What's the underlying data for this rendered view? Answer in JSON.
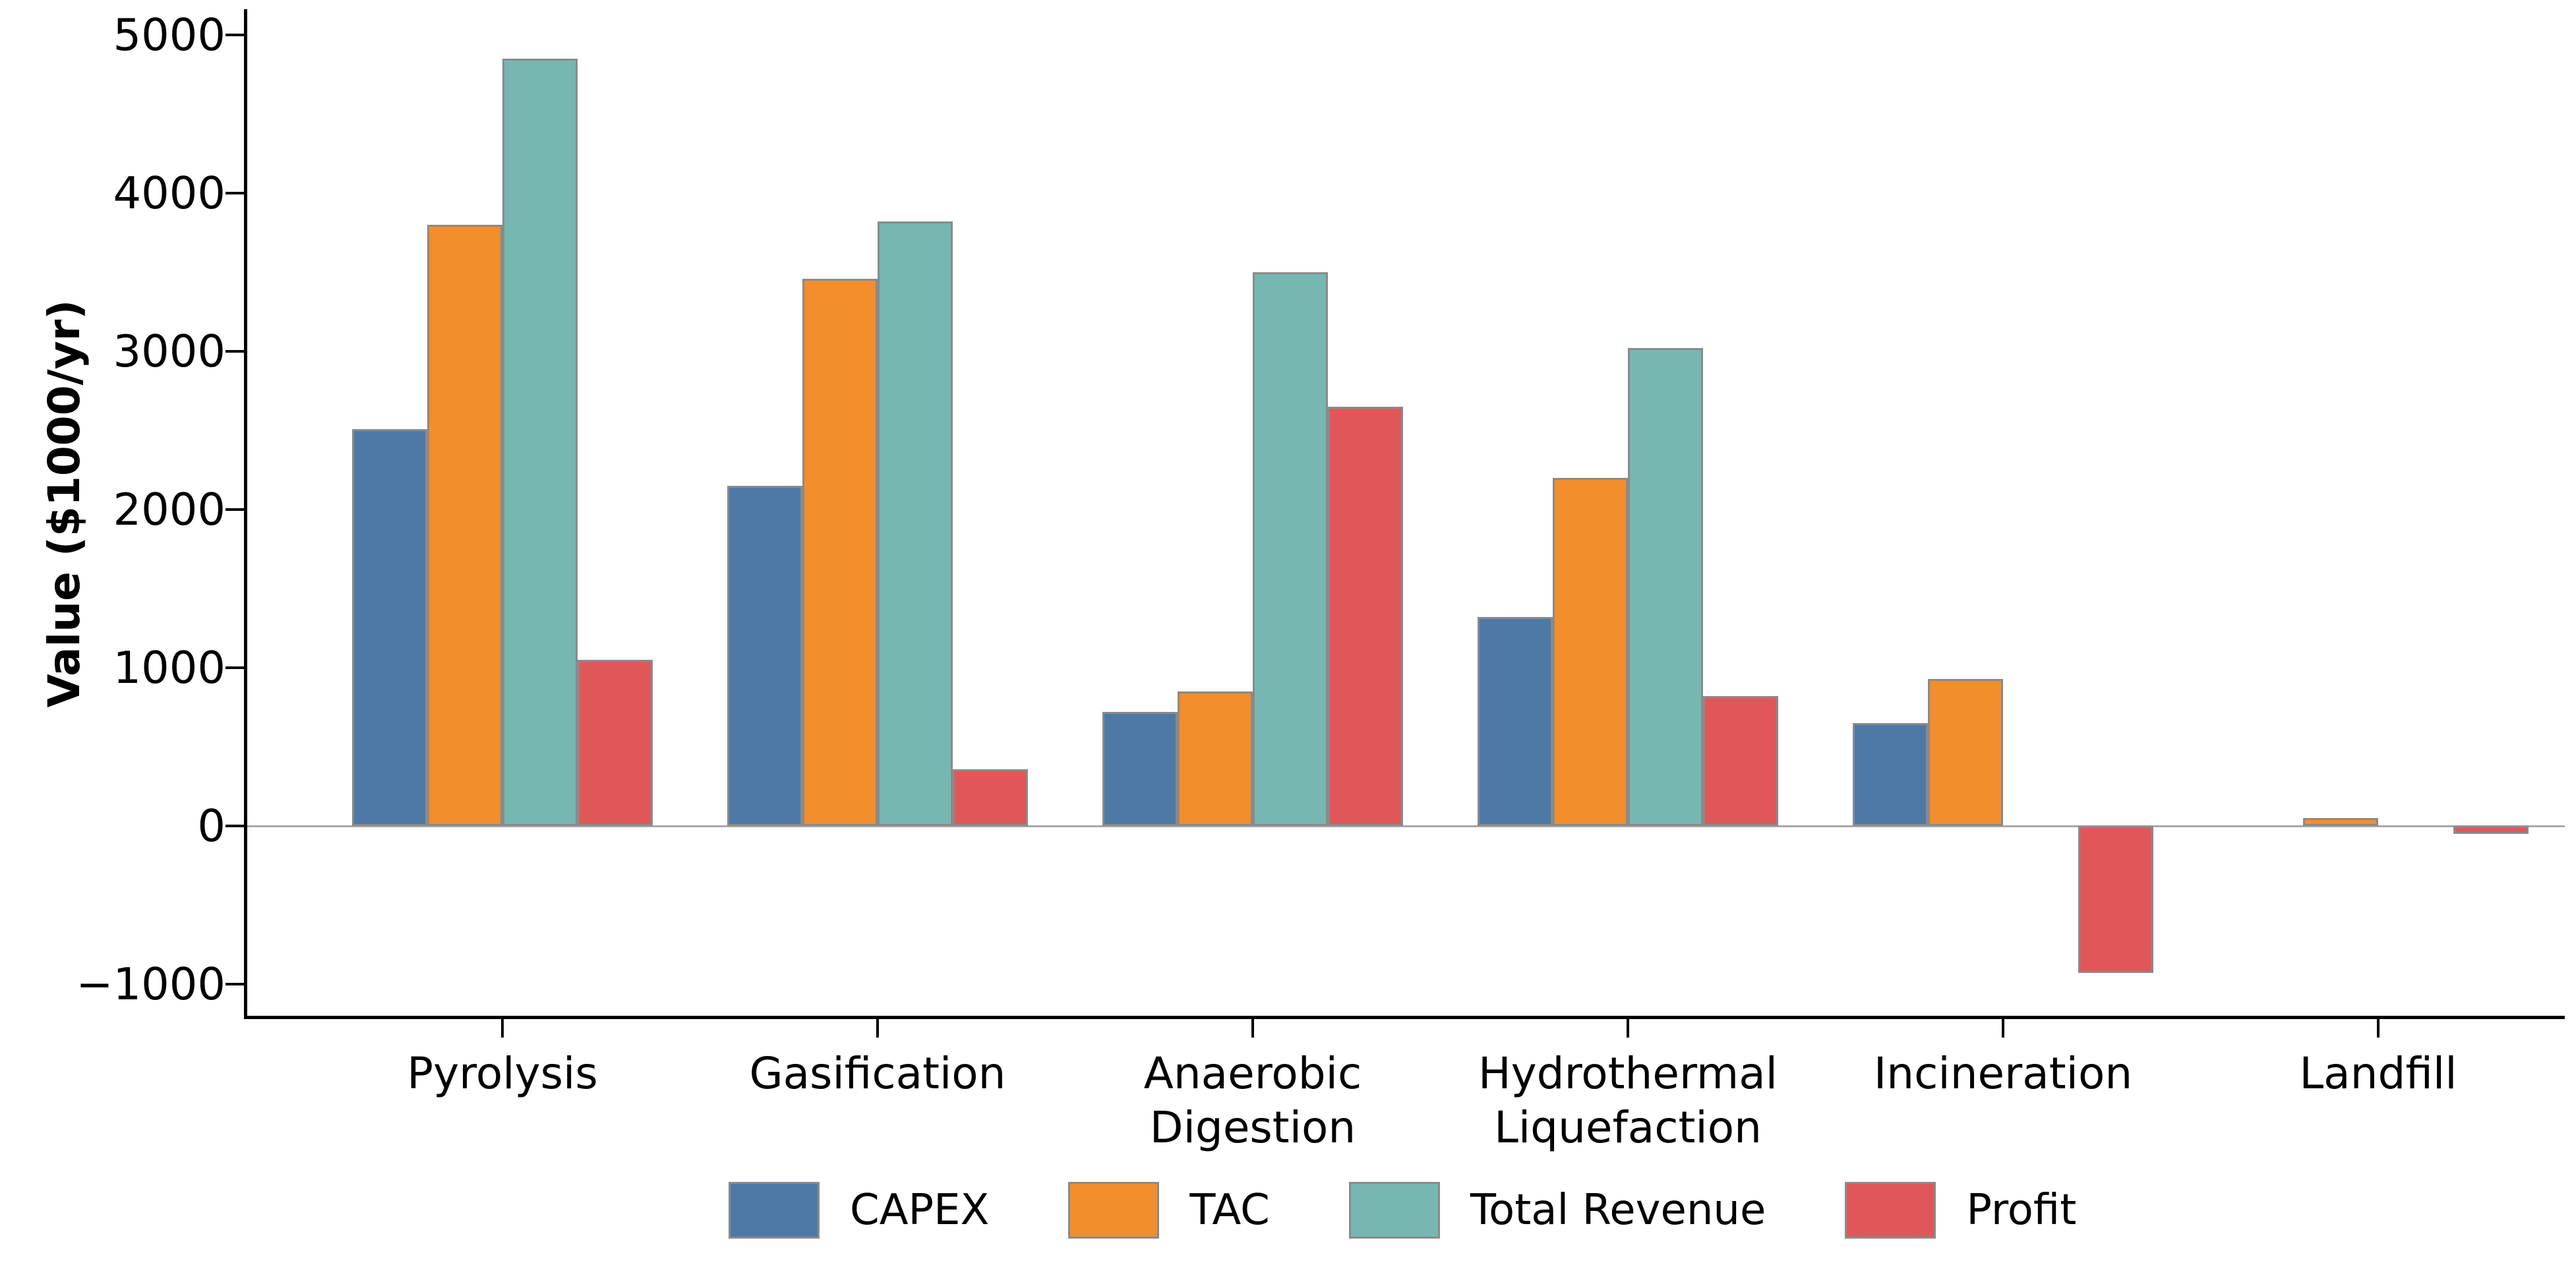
{
  "chart_data": {
    "type": "bar",
    "title": "",
    "ylabel": "Value ($1000/yr)",
    "xlabel": "",
    "categories": [
      "Pyrolysis",
      "Gasification",
      "Anaerobic\nDigestion",
      "Hydrothermal\nLiquefaction",
      "Incineration",
      "Landfill"
    ],
    "series": [
      {
        "name": "CAPEX",
        "color": "#4e79a7",
        "values": [
          2510,
          2150,
          720,
          1320,
          650,
          0
        ]
      },
      {
        "name": "TAC",
        "color": "#f28e2b",
        "values": [
          3800,
          3460,
          850,
          2200,
          930,
          50
        ]
      },
      {
        "name": "Total Revenue",
        "color": "#76b7b2",
        "values": [
          4850,
          3820,
          3500,
          3020,
          0,
          0
        ]
      },
      {
        "name": "Profit",
        "color": "#e15759",
        "values": [
          1050,
          360,
          2650,
          820,
          -930,
          -50
        ]
      }
    ],
    "yticks": [
      5000,
      4000,
      3000,
      2000,
      1000,
      0,
      -1000
    ],
    "ylim": [
      -1210,
      5160
    ],
    "grid": false,
    "legend_position": "bottom",
    "bar_edge_color": "#8a8a8a",
    "zero_line_color": "#a8a8a8"
  }
}
